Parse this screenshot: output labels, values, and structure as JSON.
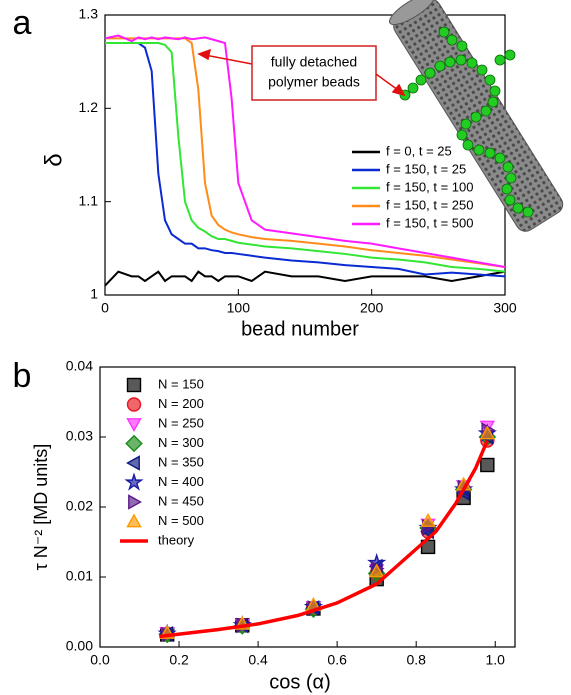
{
  "chart_data": [
    {
      "type": "line",
      "panel_label": "a",
      "x_label": "bead number",
      "y_label": "δ",
      "xlim": [
        0,
        300
      ],
      "xticks": [
        0,
        100,
        200,
        300
      ],
      "ylim": [
        1,
        1.3
      ],
      "yticks": [
        1,
        1.1,
        1.2,
        1.3
      ],
      "annotation": [
        "fully detached",
        "polymer beads"
      ],
      "x": [
        0,
        10,
        20,
        25,
        30,
        35,
        40,
        45,
        50,
        55,
        60,
        65,
        70,
        75,
        80,
        85,
        90,
        95,
        100,
        110,
        120,
        140,
        160,
        180,
        200,
        220,
        240,
        260,
        280,
        300
      ],
      "series": [
        {
          "name": "f = 0, t = 25",
          "color": "#000000",
          "values": [
            1.01,
            1.025,
            1.02,
            1.02,
            1.015,
            1.02,
            1.025,
            1.015,
            1.02,
            1.02,
            1.02,
            1.015,
            1.025,
            1.02,
            1.02,
            1.015,
            1.02,
            1.02,
            1.02,
            1.015,
            1.025,
            1.02,
            1.02,
            1.015,
            1.02,
            1.02,
            1.02,
            1.015,
            1.02,
            1.025
          ]
        },
        {
          "name": "f = 150, t = 25",
          "color": "#0a2bd1",
          "values": [
            1.27,
            1.27,
            1.27,
            1.27,
            1.265,
            1.24,
            1.13,
            1.08,
            1.065,
            1.06,
            1.055,
            1.055,
            1.05,
            1.05,
            1.048,
            1.047,
            1.045,
            1.045,
            1.044,
            1.042,
            1.04,
            1.037,
            1.035,
            1.032,
            1.03,
            1.028,
            1.022,
            1.024,
            1.022,
            1.02
          ]
        },
        {
          "name": "f = 150, t = 100",
          "color": "#33e633",
          "values": [
            1.27,
            1.27,
            1.27,
            1.27,
            1.27,
            1.27,
            1.27,
            1.268,
            1.26,
            1.17,
            1.1,
            1.08,
            1.072,
            1.068,
            1.063,
            1.06,
            1.06,
            1.058,
            1.056,
            1.054,
            1.052,
            1.05,
            1.047,
            1.044,
            1.04,
            1.038,
            1.035,
            1.03,
            1.028,
            1.025
          ]
        },
        {
          "name": "f = 150, t = 250",
          "color": "#ff8c1a",
          "values": [
            1.275,
            1.275,
            1.275,
            1.275,
            1.275,
            1.275,
            1.275,
            1.275,
            1.275,
            1.275,
            1.275,
            1.27,
            1.22,
            1.12,
            1.085,
            1.075,
            1.07,
            1.067,
            1.065,
            1.062,
            1.06,
            1.058,
            1.055,
            1.052,
            1.048,
            1.045,
            1.042,
            1.038,
            1.034,
            1.03
          ]
        },
        {
          "name": "f = 150, t = 500",
          "color": "#ff1aff",
          "values": [
            1.275,
            1.278,
            1.272,
            1.276,
            1.274,
            1.276,
            1.274,
            1.276,
            1.275,
            1.274,
            1.276,
            1.274,
            1.275,
            1.276,
            1.274,
            1.272,
            1.27,
            1.21,
            1.12,
            1.08,
            1.07,
            1.066,
            1.062,
            1.058,
            1.055,
            1.05,
            1.045,
            1.04,
            1.035,
            1.03
          ]
        }
      ]
    },
    {
      "type": "scatter",
      "panel_label": "b",
      "x_label": "cos (α)",
      "y_label": "τ N⁻² [MD units]",
      "xlim": [
        0,
        1.05
      ],
      "xticks": [
        {
          "value": 0,
          "label": "0.0"
        },
        0.2,
        0.4,
        0.6,
        0.8,
        {
          "value": 1,
          "label": "1.0"
        }
      ],
      "ylim": [
        0,
        0.04
      ],
      "yticks": [
        {
          "value": 0,
          "label": "0.00"
        },
        {
          "value": 0.01,
          "label": "0.01"
        },
        {
          "value": 0.02,
          "label": "0.02"
        },
        {
          "value": 0.03,
          "label": "0.03"
        },
        {
          "value": 0.04,
          "label": "0.04"
        }
      ],
      "x": [
        0.17,
        0.36,
        0.54,
        0.7,
        0.83,
        0.92,
        0.98
      ],
      "series": [
        {
          "name": "N = 150",
          "color": "#000000",
          "marker": "square",
          "values": [
            0.0018,
            0.0031,
            0.0055,
            0.0097,
            0.0143,
            0.0213,
            0.026
          ]
        },
        {
          "name": "N = 200",
          "color": "#e8141c",
          "marker": "circle",
          "values": [
            0.0019,
            0.0031,
            0.0056,
            0.0105,
            0.0165,
            0.0225,
            0.0295
          ]
        },
        {
          "name": "N = 250",
          "color": "#ff33ff",
          "marker": "triangle-down",
          "values": [
            0.002,
            0.0032,
            0.0057,
            0.011,
            0.0175,
            0.023,
            0.0315
          ]
        },
        {
          "name": "N = 300",
          "color": "#1a8a1a",
          "marker": "diamond",
          "values": [
            0.0018,
            0.003,
            0.0054,
            0.0105,
            0.017,
            0.0225,
            0.03
          ]
        },
        {
          "name": "N = 350",
          "color": "#0d1a80",
          "marker": "triangle-left",
          "values": [
            0.0019,
            0.0031,
            0.0056,
            0.0115,
            0.0165,
            0.022,
            0.03
          ]
        },
        {
          "name": "N = 400",
          "color": "#1a1aa6",
          "marker": "star",
          "values": [
            0.0019,
            0.0031,
            0.0057,
            0.012,
            0.017,
            0.0225,
            0.0305
          ]
        },
        {
          "name": "N = 450",
          "color": "#5a1a8a",
          "marker": "triangle-right",
          "values": [
            0.0018,
            0.0031,
            0.0056,
            0.0112,
            0.0172,
            0.0228,
            0.031
          ]
        },
        {
          "name": "N = 500",
          "color": "#ff9900",
          "marker": "triangle-up",
          "values": [
            0.002,
            0.0033,
            0.006,
            0.0108,
            0.018,
            0.0232,
            0.0305
          ]
        },
        {
          "name": "theory",
          "color": "#ff0000",
          "marker": "line",
          "x": [
            0.15,
            0.3,
            0.4,
            0.5,
            0.6,
            0.7,
            0.8,
            0.85,
            0.9,
            0.95,
            0.98
          ],
          "values": [
            0.0015,
            0.0025,
            0.0033,
            0.0045,
            0.0063,
            0.009,
            0.014,
            0.0165,
            0.0205,
            0.0255,
            0.0295
          ]
        }
      ]
    }
  ]
}
